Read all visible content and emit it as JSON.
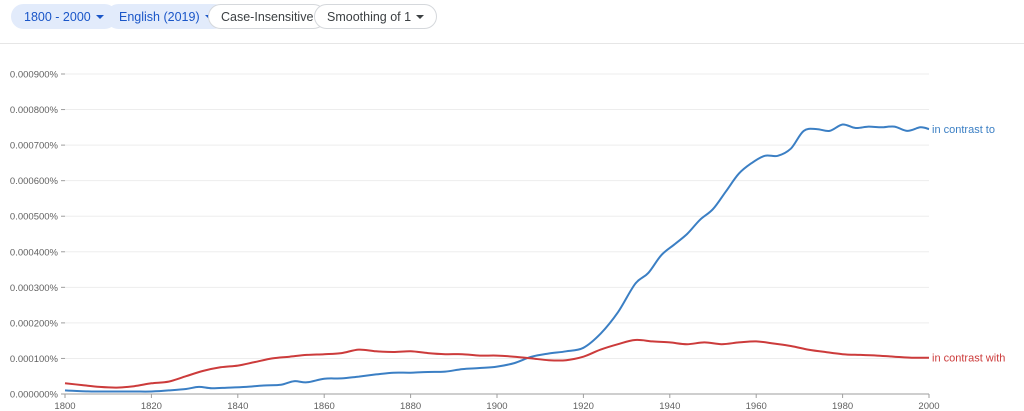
{
  "toolbar": {
    "year_range": "1800 - 2000",
    "corpus": "English (2019)",
    "case": "Case-Insensitive",
    "smoothing": "Smoothing of 1"
  },
  "colors": {
    "in_contrast_to": "#3b7fc4",
    "in_contrast_with": "#cc3b3b"
  },
  "chart_data": {
    "type": "line",
    "xlim": [
      1800,
      2000
    ],
    "ylim": [
      0,
      0.0009
    ],
    "x_ticks": [
      "1800",
      "1820",
      "1840",
      "1860",
      "1880",
      "1900",
      "1920",
      "1940",
      "1960",
      "1980",
      "2000"
    ],
    "y_ticks": [
      "0.000000%",
      "0.000100%",
      "0.000200%",
      "0.000300%",
      "0.000400%",
      "0.000500%",
      "0.000600%",
      "0.000700%",
      "0.000800%",
      "0.000900%"
    ],
    "grid": true,
    "series": [
      {
        "name": "in contrast to",
        "color": "#3b7fc4",
        "x": [
          1800,
          1804,
          1808,
          1812,
          1816,
          1820,
          1824,
          1828,
          1831,
          1834,
          1838,
          1842,
          1846,
          1850,
          1853,
          1856,
          1860,
          1864,
          1868,
          1872,
          1876,
          1880,
          1884,
          1888,
          1892,
          1896,
          1900,
          1904,
          1908,
          1912,
          1916,
          1920,
          1924,
          1928,
          1932,
          1935,
          1938,
          1941,
          1944,
          1947,
          1950,
          1953,
          1956,
          1959,
          1962,
          1965,
          1968,
          1971,
          1974,
          1977,
          1980,
          1983,
          1986,
          1989,
          1992,
          1995,
          1998,
          2000
        ],
        "y": [
          1e-05,
          8e-06,
          7e-06,
          7e-06,
          7e-06,
          7e-06,
          1e-05,
          1.4e-05,
          2e-05,
          1.6e-05,
          1.8e-05,
          2e-05,
          2.4e-05,
          2.6e-05,
          3.6e-05,
          3.3e-05,
          4.3e-05,
          4.4e-05,
          4.9e-05,
          5.5e-05,
          6e-05,
          6e-05,
          6.2e-05,
          6.3e-05,
          7e-05,
          7.3e-05,
          7.7e-05,
          8.7e-05,
          0.000105,
          0.000114,
          0.00012,
          0.00013,
          0.00017,
          0.00023,
          0.00031,
          0.00034,
          0.00039,
          0.00042,
          0.00045,
          0.00049,
          0.00052,
          0.00057,
          0.00062,
          0.00065,
          0.00067,
          0.00067,
          0.00069,
          0.00074,
          0.000745,
          0.00074,
          0.000758,
          0.000748,
          0.000752,
          0.00075,
          0.000752,
          0.00074,
          0.00075,
          0.000745
        ]
      },
      {
        "name": "in contrast with",
        "color": "#cc3b3b",
        "x": [
          1800,
          1804,
          1808,
          1812,
          1816,
          1820,
          1824,
          1828,
          1832,
          1836,
          1840,
          1844,
          1848,
          1852,
          1856,
          1860,
          1864,
          1868,
          1872,
          1876,
          1880,
          1884,
          1888,
          1892,
          1896,
          1900,
          1904,
          1908,
          1912,
          1916,
          1920,
          1924,
          1928,
          1932,
          1936,
          1940,
          1944,
          1948,
          1952,
          1956,
          1960,
          1964,
          1968,
          1972,
          1976,
          1980,
          1984,
          1988,
          1992,
          1996,
          2000
        ],
        "y": [
          3e-05,
          2.5e-05,
          2e-05,
          1.8e-05,
          2.2e-05,
          3e-05,
          3.5e-05,
          5e-05,
          6.5e-05,
          7.5e-05,
          8e-05,
          9e-05,
          0.0001,
          0.000105,
          0.00011,
          0.000112,
          0.000115,
          0.000125,
          0.00012,
          0.000118,
          0.00012,
          0.000115,
          0.000112,
          0.000112,
          0.000108,
          0.000108,
          0.000105,
          0.0001,
          9.5e-05,
          9.5e-05,
          0.000105,
          0.000125,
          0.00014,
          0.000152,
          0.000148,
          0.000145,
          0.00014,
          0.000145,
          0.00014,
          0.000145,
          0.000148,
          0.000142,
          0.000135,
          0.000125,
          0.000118,
          0.000112,
          0.00011,
          0.000108,
          0.000105,
          0.000102,
          0.000102
        ]
      }
    ]
  }
}
